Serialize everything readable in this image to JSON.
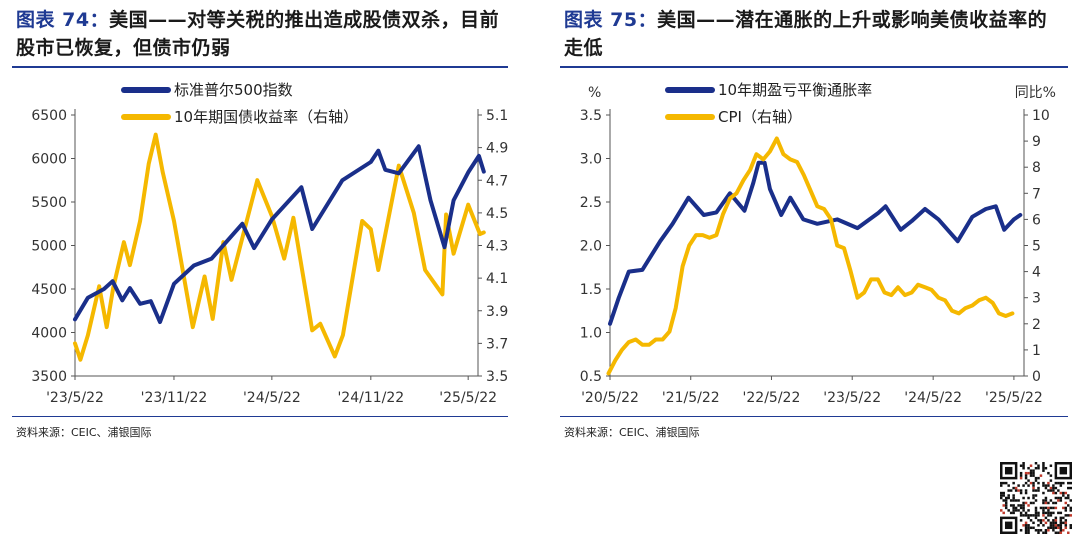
{
  "figures": [
    {
      "fig_label": "图表",
      "fig_number": "74：",
      "title": "美国——对等关税的推出造成股债双杀，目前股市已恢复，但债市仍弱",
      "source": "资料来源：CEIC、浦银国际"
    },
    {
      "fig_label": "图表",
      "fig_number": "75：",
      "title": "美国——潜在通胀的上升或影响美债收益率的走低",
      "source": "资料来源：CEIC、浦银国际"
    }
  ],
  "colors": {
    "navy": "#1a2f8a",
    "gold": "#f5b800",
    "accent": "#1f3a93"
  },
  "chart_data": [
    {
      "type": "line",
      "x_ticks": [
        "'23/5/22",
        "'23/11/22",
        "'24/5/22",
        "'24/11/22",
        "'25/5/22"
      ],
      "y_left": {
        "range": [
          3500,
          6500
        ],
        "ticks": [
          3500,
          4000,
          4500,
          5000,
          5500,
          6000,
          6500
        ]
      },
      "y_right": {
        "range": [
          3.5,
          5.1
        ],
        "ticks": [
          3.5,
          3.7,
          3.9,
          4.1,
          4.3,
          4.5,
          4.7,
          4.9,
          5.1
        ]
      },
      "legend_position": "top-center",
      "series": [
        {
          "name": "标准普尔500指数",
          "axis": "left",
          "color": "#1a2f8a",
          "x": [
            "2023-05-22",
            "2023-06-15",
            "2023-07-15",
            "2023-07-31",
            "2023-08-18",
            "2023-09-01",
            "2023-09-20",
            "2023-10-10",
            "2023-10-27",
            "2023-11-22",
            "2023-12-29",
            "2024-01-31",
            "2024-03-28",
            "2024-04-19",
            "2024-05-22",
            "2024-07-16",
            "2024-08-05",
            "2024-09-30",
            "2024-11-22",
            "2024-12-06",
            "2024-12-19",
            "2025-01-13",
            "2025-02-19",
            "2025-03-13",
            "2025-04-08",
            "2025-04-25",
            "2025-05-22",
            "2025-06-11",
            "2025-06-20"
          ],
          "values": [
            4150,
            4400,
            4500,
            4590,
            4370,
            4510,
            4330,
            4360,
            4120,
            4560,
            4770,
            4850,
            5250,
            4970,
            5300,
            5670,
            5190,
            5750,
            5960,
            6090,
            5870,
            5830,
            6140,
            5520,
            4980,
            5520,
            5840,
            6030,
            5850
          ]
        },
        {
          "name": "10年期国债收益率（右轴）",
          "axis": "right",
          "color": "#f5b800",
          "x": [
            "2023-05-22",
            "2023-06-01",
            "2023-06-15",
            "2023-07-06",
            "2023-07-20",
            "2023-08-01",
            "2023-08-21",
            "2023-09-01",
            "2023-09-20",
            "2023-10-06",
            "2023-10-19",
            "2023-11-01",
            "2023-11-22",
            "2023-12-27",
            "2024-01-18",
            "2024-02-02",
            "2024-02-22",
            "2024-03-08",
            "2024-04-25",
            "2024-05-22",
            "2024-06-14",
            "2024-07-01",
            "2024-08-05",
            "2024-08-20",
            "2024-09-16",
            "2024-10-01",
            "2024-11-06",
            "2024-11-22",
            "2024-12-06",
            "2025-01-13",
            "2025-02-10",
            "2025-03-03",
            "2025-04-04",
            "2025-04-11",
            "2025-04-25",
            "2025-05-22",
            "2025-06-13",
            "2025-06-20"
          ],
          "values": [
            3.7,
            3.6,
            3.75,
            4.05,
            3.8,
            4.04,
            4.32,
            4.18,
            4.45,
            4.8,
            4.98,
            4.75,
            4.45,
            3.8,
            4.11,
            3.85,
            4.32,
            4.09,
            4.7,
            4.48,
            4.22,
            4.47,
            3.78,
            3.82,
            3.62,
            3.75,
            4.45,
            4.4,
            4.15,
            4.79,
            4.5,
            4.15,
            4.0,
            4.49,
            4.25,
            4.55,
            4.37,
            4.38
          ]
        }
      ],
      "ylabel_left": "",
      "ylabel_right": ""
    },
    {
      "type": "line",
      "x_ticks": [
        "'20/5/22",
        "'21/5/22",
        "'22/5/22",
        "'23/5/22",
        "'24/5/22",
        "'25/5/22"
      ],
      "y_left": {
        "label": "%",
        "range": [
          0.5,
          3.5
        ],
        "ticks": [
          0.5,
          1.0,
          1.5,
          2.0,
          2.5,
          3.0,
          3.5
        ]
      },
      "y_right": {
        "label": "同比%",
        "range": [
          0,
          10
        ],
        "ticks": [
          0,
          1,
          2,
          3,
          4,
          5,
          6,
          7,
          8,
          9,
          10
        ]
      },
      "legend_position": "top-center",
      "series": [
        {
          "name": "10年期盈亏平衡通胀率",
          "axis": "left",
          "color": "#1a2f8a",
          "x": [
            "2020-05-22",
            "2020-07-01",
            "2020-08-15",
            "2020-10-15",
            "2021-01-04",
            "2021-03-01",
            "2021-05-12",
            "2021-07-20",
            "2021-09-15",
            "2021-11-15",
            "2022-01-20",
            "2022-03-01",
            "2022-03-25",
            "2022-04-21",
            "2022-05-15",
            "2022-07-05",
            "2022-08-15",
            "2022-10-13",
            "2022-12-15",
            "2023-03-15",
            "2023-06-15",
            "2023-09-15",
            "2023-10-20",
            "2023-12-27",
            "2024-02-15",
            "2024-04-15",
            "2024-06-15",
            "2024-09-10",
            "2024-11-15",
            "2025-01-15",
            "2025-03-01",
            "2025-04-08",
            "2025-05-22",
            "2025-06-20"
          ],
          "values": [
            1.1,
            1.4,
            1.7,
            1.72,
            2.05,
            2.25,
            2.55,
            2.35,
            2.38,
            2.6,
            2.4,
            2.72,
            2.95,
            2.95,
            2.65,
            2.35,
            2.55,
            2.3,
            2.25,
            2.3,
            2.2,
            2.37,
            2.45,
            2.18,
            2.28,
            2.42,
            2.3,
            2.05,
            2.33,
            2.42,
            2.45,
            2.18,
            2.3,
            2.35
          ]
        },
        {
          "name": "CPI（右轴）",
          "axis": "right",
          "color": "#f5b800",
          "x": [
            "2020-05-15",
            "2020-06-15",
            "2020-07-15",
            "2020-08-15",
            "2020-09-15",
            "2020-10-15",
            "2020-11-15",
            "2020-12-15",
            "2021-01-15",
            "2021-02-15",
            "2021-03-15",
            "2021-04-15",
            "2021-05-15",
            "2021-06-15",
            "2021-07-15",
            "2021-08-15",
            "2021-09-15",
            "2021-10-15",
            "2021-11-15",
            "2021-12-15",
            "2022-01-15",
            "2022-02-15",
            "2022-03-15",
            "2022-04-15",
            "2022-05-15",
            "2022-06-15",
            "2022-07-15",
            "2022-08-15",
            "2022-09-15",
            "2022-10-15",
            "2022-11-15",
            "2022-12-15",
            "2023-01-15",
            "2023-02-15",
            "2023-03-15",
            "2023-04-15",
            "2023-05-15",
            "2023-06-15",
            "2023-07-15",
            "2023-08-15",
            "2023-09-15",
            "2023-10-15",
            "2023-11-15",
            "2023-12-15",
            "2024-01-15",
            "2024-02-15",
            "2024-03-15",
            "2024-04-15",
            "2024-05-15",
            "2024-06-15",
            "2024-07-15",
            "2024-08-15",
            "2024-09-15",
            "2024-10-15",
            "2024-11-15",
            "2024-12-15",
            "2025-01-15",
            "2025-02-15",
            "2025-03-15",
            "2025-04-15",
            "2025-05-15"
          ],
          "values": [
            0.1,
            0.6,
            1.0,
            1.3,
            1.4,
            1.2,
            1.2,
            1.4,
            1.4,
            1.7,
            2.6,
            4.2,
            5.0,
            5.4,
            5.4,
            5.3,
            5.4,
            6.2,
            6.8,
            7.0,
            7.5,
            7.9,
            8.5,
            8.3,
            8.6,
            9.1,
            8.5,
            8.3,
            8.2,
            7.7,
            7.1,
            6.5,
            6.4,
            6.0,
            5.0,
            4.9,
            4.0,
            3.0,
            3.2,
            3.7,
            3.7,
            3.2,
            3.1,
            3.4,
            3.1,
            3.2,
            3.5,
            3.4,
            3.3,
            3.0,
            2.9,
            2.5,
            2.4,
            2.6,
            2.7,
            2.9,
            3.0,
            2.8,
            2.4,
            2.3,
            2.4
          ]
        }
      ],
      "ylabel_left": "%",
      "ylabel_right": "同比%"
    }
  ]
}
